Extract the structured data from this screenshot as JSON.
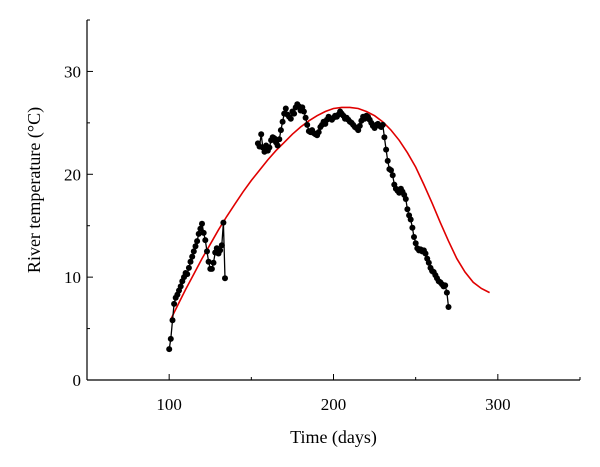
{
  "chart_data": {
    "type": "scatter",
    "title": "",
    "xlabel": "Time (days)",
    "ylabel": "River temperature (°C)",
    "xlim": [
      50,
      350
    ],
    "ylim": [
      0,
      35
    ],
    "xticks": [
      100,
      200,
      300
    ],
    "yticks": [
      0,
      10,
      20,
      30
    ],
    "grid": false,
    "legend": "none",
    "series": [
      {
        "kind": "line-markers",
        "color": "#000000",
        "segments": [
          [
            [
              100,
              3
            ],
            [
              101,
              4
            ],
            [
              102,
              5.8
            ],
            [
              103,
              7.4
            ],
            [
              104,
              8
            ],
            [
              105,
              8.3
            ],
            [
              106,
              8.7
            ],
            [
              107,
              9.1
            ],
            [
              108,
              9.6
            ],
            [
              109,
              10
            ],
            [
              110,
              10.4
            ],
            [
              111,
              10.3
            ],
            [
              112,
              10.9
            ],
            [
              113,
              11.5
            ],
            [
              114,
              12
            ],
            [
              115,
              12.5
            ],
            [
              116,
              13
            ],
            [
              117,
              13.5
            ],
            [
              118,
              14.2
            ],
            [
              119,
              14.7
            ],
            [
              120,
              15.2
            ],
            [
              121,
              14.3
            ],
            [
              122,
              13.6
            ],
            [
              123,
              12.5
            ],
            [
              124,
              11.5
            ],
            [
              125,
              10.8
            ],
            [
              126,
              10.8
            ],
            [
              127,
              11.4
            ],
            [
              128,
              12.4
            ],
            [
              129,
              12.8
            ],
            [
              130,
              12.3
            ],
            [
              131,
              12.6
            ],
            [
              132,
              13.1
            ],
            [
              133,
              15.3
            ],
            [
              134,
              9.9
            ]
          ],
          [
            [
              154,
              23
            ],
            [
              155,
              22.7
            ],
            [
              156,
              23.9
            ],
            [
              157,
              22.6
            ],
            [
              158,
              22.2
            ],
            [
              159,
              22.8
            ],
            [
              160,
              22.3
            ],
            [
              161,
              22.6
            ],
            [
              162,
              23.3
            ],
            [
              163,
              23.6
            ],
            [
              164,
              23.5
            ],
            [
              165,
              23.1
            ],
            [
              166,
              22.8
            ],
            [
              167,
              23.4
            ],
            [
              168,
              24.3
            ],
            [
              169,
              25.1
            ],
            [
              170,
              25.9
            ],
            [
              171,
              26.4
            ],
            [
              172,
              25.8
            ],
            [
              173,
              25.6
            ],
            [
              174,
              25.4
            ],
            [
              175,
              26.1
            ],
            [
              176,
              25.9
            ],
            [
              177,
              26.5
            ],
            [
              178,
              26.8
            ],
            [
              179,
              26.6
            ],
            [
              180,
              26.2
            ],
            [
              181,
              26.5
            ],
            [
              182,
              26.1
            ],
            [
              183,
              25.5
            ],
            [
              184,
              24.8
            ],
            [
              185,
              24.2
            ],
            [
              186,
              24.1
            ],
            [
              187,
              24.3
            ],
            [
              188,
              24.0
            ],
            [
              189,
              23.9
            ],
            [
              190,
              23.8
            ],
            [
              191,
              24.1
            ],
            [
              192,
              24.6
            ],
            [
              193,
              24.8
            ],
            [
              194,
              25.1
            ],
            [
              195,
              24.9
            ],
            [
              196,
              25.3
            ],
            [
              197,
              25.6
            ],
            [
              198,
              25.4
            ],
            [
              199,
              25.3
            ],
            [
              200,
              25.5
            ],
            [
              201,
              25.7
            ],
            [
              202,
              25.6
            ],
            [
              203,
              25.8
            ],
            [
              204,
              26.1
            ],
            [
              205,
              25.9
            ],
            [
              206,
              25.7
            ],
            [
              207,
              25.4
            ],
            [
              208,
              25.5
            ],
            [
              209,
              25.3
            ],
            [
              210,
              25.1
            ],
            [
              211,
              25.0
            ],
            [
              212,
              24.8
            ],
            [
              213,
              24.6
            ],
            [
              214,
              24.5
            ],
            [
              215,
              24.3
            ],
            [
              216,
              24.7
            ],
            [
              217,
              25.2
            ],
            [
              218,
              25.6
            ],
            [
              219,
              25.4
            ],
            [
              220,
              25.7
            ],
            [
              221,
              25.6
            ],
            [
              222,
              25.3
            ],
            [
              223,
              25.0
            ],
            [
              224,
              24.7
            ],
            [
              225,
              24.5
            ],
            [
              226,
              24.8
            ],
            [
              227,
              24.9
            ],
            [
              228,
              24.7
            ],
            [
              229,
              24.6
            ],
            [
              230,
              24.8
            ],
            [
              231,
              23.6
            ],
            [
              232,
              22.4
            ],
            [
              233,
              21.3
            ],
            [
              234,
              20.5
            ],
            [
              235,
              20.4
            ],
            [
              236,
              19.9
            ],
            [
              237,
              19.0
            ],
            [
              238,
              18.6
            ],
            [
              239,
              18.4
            ],
            [
              240,
              18.2
            ],
            [
              241,
              18.6
            ],
            [
              242,
              18.3
            ],
            [
              243,
              18.0
            ],
            [
              244,
              17.6
            ],
            [
              245,
              16.6
            ],
            [
              246,
              16.0
            ],
            [
              247,
              15.6
            ],
            [
              248,
              14.8
            ],
            [
              249,
              13.9
            ],
            [
              250,
              13.3
            ],
            [
              251,
              12.8
            ],
            [
              252,
              12.6
            ],
            [
              253,
              12.7
            ],
            [
              254,
              12.5
            ],
            [
              255,
              12.6
            ],
            [
              256,
              12.3
            ],
            [
              257,
              11.8
            ],
            [
              258,
              11.4
            ],
            [
              259,
              10.9
            ],
            [
              260,
              10.6
            ],
            [
              261,
              10.5
            ],
            [
              262,
              10.2
            ],
            [
              263,
              9.9
            ],
            [
              264,
              9.6
            ],
            [
              265,
              9.5
            ],
            [
              266,
              9.3
            ],
            [
              267,
              9.1
            ],
            [
              268,
              9.2
            ],
            [
              269,
              8.5
            ],
            [
              270,
              7.1
            ]
          ]
        ]
      },
      {
        "kind": "fit-curve",
        "color": "#e00000",
        "x": [
          101,
          105,
          110,
          115,
          120,
          125,
          130,
          135,
          140,
          145,
          150,
          155,
          160,
          165,
          170,
          175,
          180,
          185,
          190,
          195,
          200,
          205,
          210,
          215,
          220,
          225,
          230,
          235,
          240,
          245,
          250,
          255,
          260,
          265,
          270,
          275,
          280,
          285,
          290,
          295
        ],
        "y": [
          5.9,
          7.2,
          8.8,
          10.3,
          11.8,
          13.2,
          14.6,
          15.9,
          17.1,
          18.3,
          19.4,
          20.4,
          21.4,
          22.3,
          23.1,
          23.9,
          24.6,
          25.2,
          25.7,
          26.1,
          26.4,
          26.5,
          26.5,
          26.4,
          26.1,
          25.7,
          25.1,
          24.3,
          23.3,
          22.1,
          20.7,
          19.0,
          17.2,
          15.3,
          13.5,
          11.8,
          10.5,
          9.5,
          8.9,
          8.5
        ]
      }
    ]
  }
}
